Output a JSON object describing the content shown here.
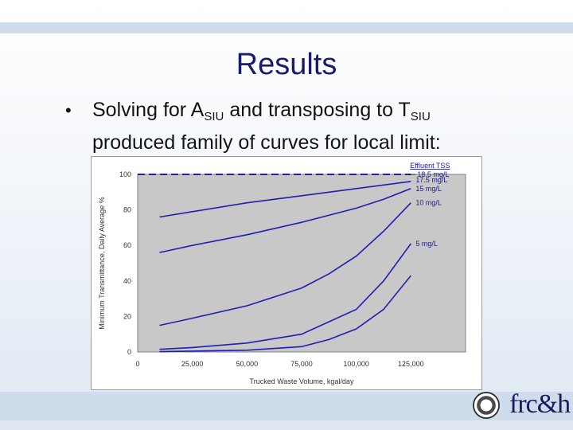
{
  "slide": {
    "title": "Results",
    "bullet_pre": "Solving for A",
    "bullet_sub1": "SIU",
    "bullet_mid": " and transposing to T",
    "bullet_sub2": "SIU",
    "bullet_line2": "produced family of curves for local limit:",
    "logo_text": "frc&h"
  },
  "colors": {
    "title": "#1a1a6e",
    "plot_bg": "#c8c8c8",
    "curve": "#1f1fb4",
    "dashed": "#1f1fb4"
  },
  "chart_data": {
    "type": "line",
    "xlabel": "Trucked Waste Volume, kgal/day",
    "ylabel": "Minimum Transmittance, Daily Average %",
    "xlim": [
      0,
      150000
    ],
    "ylim": [
      0,
      100
    ],
    "x_ticks": [
      "0",
      "25,000",
      "50,000",
      "75,000",
      "100,000",
      "125,000"
    ],
    "x_tick_values": [
      0,
      25000,
      50000,
      75000,
      100000,
      125000
    ],
    "y_ticks": [
      "0",
      "20",
      "40",
      "60",
      "80",
      "100"
    ],
    "y_tick_values": [
      0,
      20,
      40,
      60,
      80,
      100
    ],
    "legend_title": "Effluent TSS",
    "grid": false,
    "series": [
      {
        "name": "18.5 mg/L",
        "style": "dashed",
        "x": [
          0,
          125000
        ],
        "y": [
          100,
          100
        ]
      },
      {
        "name": "17.5 mg/L",
        "style": "solid",
        "x": [
          10000,
          25000,
          50000,
          75000,
          100000,
          125000
        ],
        "y": [
          76,
          79,
          84,
          88,
          92,
          96
        ]
      },
      {
        "name": "15 mg/L",
        "style": "solid",
        "x": [
          10000,
          25000,
          50000,
          75000,
          100000,
          112500,
          125000
        ],
        "y": [
          56,
          60,
          66,
          73,
          81,
          86,
          92
        ]
      },
      {
        "name": "10 mg/L",
        "style": "solid",
        "x": [
          10000,
          25000,
          50000,
          75000,
          87500,
          100000,
          112500,
          125000
        ],
        "y": [
          15,
          19,
          26,
          36,
          44,
          54,
          68,
          84
        ]
      },
      {
        "name": "5 mg/L",
        "style": "solid",
        "x": [
          10000,
          25000,
          50000,
          75000,
          87500,
          100000,
          112500,
          125000
        ],
        "y": [
          1.5,
          2.5,
          5,
          10,
          17,
          24,
          40,
          61
        ]
      },
      {
        "name": "",
        "style": "solid",
        "x": [
          10000,
          25000,
          50000,
          75000,
          87500,
          100000,
          112500,
          125000
        ],
        "y": [
          0.2,
          0.5,
          1,
          3,
          7,
          13,
          24,
          43
        ]
      }
    ]
  }
}
